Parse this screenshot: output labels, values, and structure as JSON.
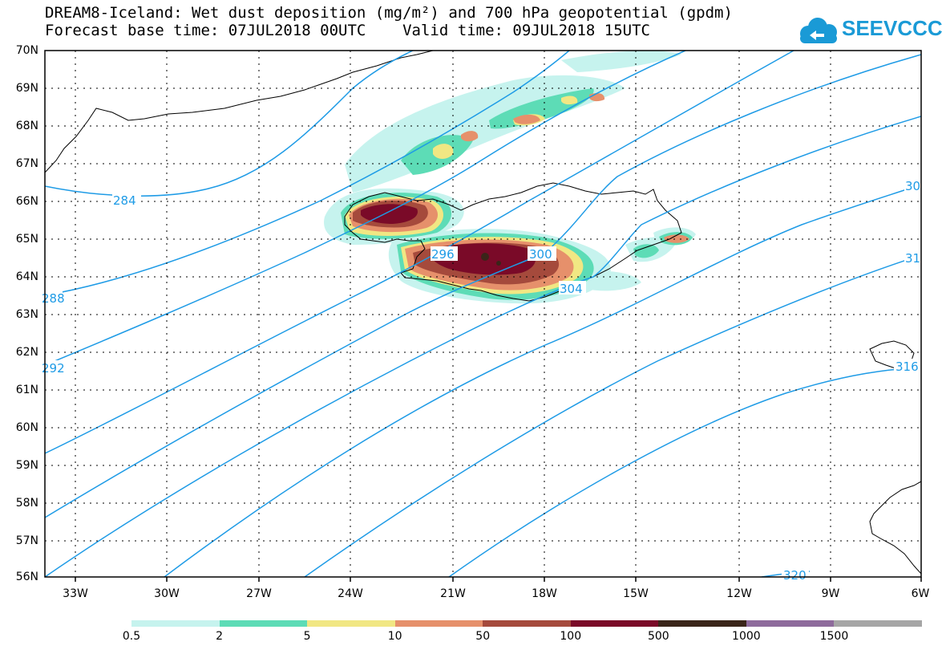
{
  "titles": {
    "line1": "DREAM8-Iceland: Wet dust deposition (mg/m²) and 700 hPa geopotential (gpdm)",
    "line2": "Forecast base time: 07JUL2018 00UTC    Valid time: 09JUL2018 15UTC"
  },
  "logo": {
    "text": "SEEVCCC",
    "color": "#1a9ad6"
  },
  "axes": {
    "lat_labels": [
      "70N",
      "69N",
      "68N",
      "67N",
      "66N",
      "65N",
      "64N",
      "63N",
      "62N",
      "61N",
      "60N",
      "59N",
      "58N",
      "57N",
      "56N"
    ],
    "lon_labels": [
      "33W",
      "30W",
      "27W",
      "24W",
      "21W",
      "18W",
      "15W",
      "12W",
      "9W",
      "6W"
    ],
    "lat_range": [
      56,
      70
    ],
    "lon_range": [
      -34.5,
      -6
    ],
    "grid": true
  },
  "contours": {
    "color": "#1e9be6",
    "labels": [
      "284",
      "288",
      "292",
      "296",
      "300",
      "304",
      "30",
      "31",
      "316",
      "320"
    ]
  },
  "legend": {
    "labels": [
      "0.5",
      "2",
      "5",
      "10",
      "50",
      "100",
      "500",
      "1000",
      "1500"
    ],
    "colors": [
      "#c6f3ee",
      "#5ddcb6",
      "#f1e783",
      "#e6906b",
      "#a54a3c",
      "#7a0a28",
      "#3a2519",
      "#8e6b9c",
      "#a6a6a6"
    ]
  }
}
